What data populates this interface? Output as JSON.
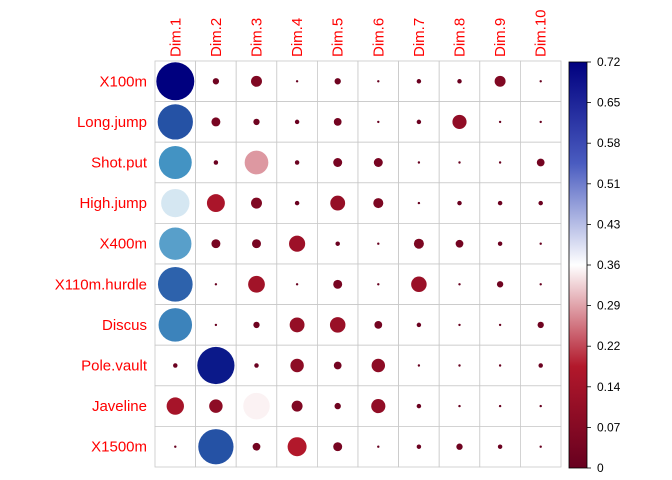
{
  "chart_data": {
    "type": "heatmap",
    "title": "",
    "columns": [
      "Dim.1",
      "Dim.2",
      "Dim.3",
      "Dim.4",
      "Dim.5",
      "Dim.6",
      "Dim.7",
      "Dim.8",
      "Dim.9",
      "Dim.10"
    ],
    "rows": [
      "X100m",
      "Long.jump",
      "Shot.put",
      "High.jump",
      "X400m",
      "X110m.hurdle",
      "Discus",
      "Pole.vault",
      "Javeline",
      "X1500m"
    ],
    "values": [
      [
        0.72,
        0.02,
        0.06,
        0.0,
        0.02,
        0.0,
        0.01,
        0.01,
        0.06,
        0.0
      ],
      [
        0.62,
        0.04,
        0.02,
        0.01,
        0.03,
        0.0,
        0.01,
        0.1,
        0.0,
        0.0
      ],
      [
        0.54,
        0.01,
        0.28,
        0.01,
        0.04,
        0.04,
        0.0,
        0.0,
        0.0,
        0.03
      ],
      [
        0.4,
        0.16,
        0.06,
        0.01,
        0.11,
        0.05,
        0.0,
        0.01,
        0.01,
        0.01
      ],
      [
        0.52,
        0.04,
        0.04,
        0.13,
        0.01,
        0.0,
        0.05,
        0.03,
        0.01,
        0.0
      ],
      [
        0.6,
        0.0,
        0.14,
        0.0,
        0.04,
        0.0,
        0.12,
        0.0,
        0.02,
        0.0
      ],
      [
        0.56,
        0.0,
        0.02,
        0.11,
        0.12,
        0.03,
        0.01,
        0.0,
        0.0,
        0.02
      ],
      [
        0.01,
        0.69,
        0.01,
        0.09,
        0.03,
        0.09,
        0.0,
        0.0,
        0.0,
        0.01
      ],
      [
        0.15,
        0.09,
        0.35,
        0.06,
        0.02,
        0.1,
        0.01,
        0.0,
        0.0,
        0.0
      ],
      [
        0.0,
        0.62,
        0.03,
        0.18,
        0.04,
        0.0,
        0.01,
        0.02,
        0.01,
        0.0
      ]
    ],
    "colorbar": {
      "min": 0,
      "max": 0.72,
      "ticks": [
        "0.72",
        "0.65",
        "0.58",
        "0.51",
        "0.43",
        "0.36",
        "0.29",
        "0.22",
        "0.14",
        "0.07",
        "0"
      ],
      "colors": {
        "low": "#67001f",
        "lowmid": "#b2182b",
        "mid": "#ffffff",
        "highmid": "#4393c3",
        "high": "#00007f"
      }
    },
    "label_color": "#ff0000",
    "grid": true
  }
}
